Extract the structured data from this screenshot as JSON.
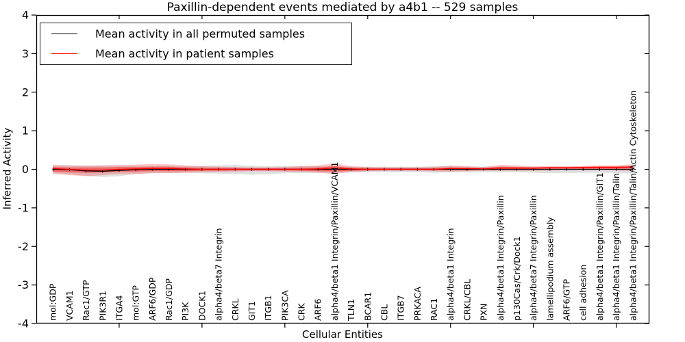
{
  "chart_data": {
    "type": "area",
    "title": "Paxillin-dependent events mediated by a4b1 -- 529 samples",
    "xlabel": "Cellular Entities",
    "ylabel": "Inferred Activity",
    "ylim": [
      -4,
      4
    ],
    "yticks": [
      -4,
      -3,
      -2,
      -1,
      0,
      1,
      2,
      3,
      4
    ],
    "x_axis_units": [
      0,
      37
    ],
    "x_major_ticks": [
      5,
      10,
      15,
      20,
      25,
      30,
      35
    ],
    "grid": false,
    "legend_position": "upper left",
    "categories": [
      "mol:GDP",
      "VCAM1",
      "Rac1/GTP",
      "PIK3R1",
      "ITGA4",
      "mol:GTP",
      "ARF6/GDP",
      "Rac1/GDP",
      "PI3K",
      "DOCK1",
      "alpha4/beta7 Integrin",
      "CRKL",
      "GIT1",
      "ITGB1",
      "PIK3CA",
      "CRK",
      "ARF6",
      "alpha4/beta1 Integrin/Paxillin/VCAM1",
      "TLN1",
      "BCAR1",
      "CBL",
      "ITGB7",
      "PRKACA",
      "RAC1",
      "alpha4/beta1 Integrin",
      "CRKL/CBL",
      "PXN",
      "alpha4/beta1 Integrin/Paxillin",
      "p130Cas/Crk/Dock1",
      "alpha4/beta7 Integrin/Paxillin",
      "lamellipodium assembly",
      "ARF6/GTP",
      "cell adhesion",
      "alpha4/beta1 Integrin/Paxillin/GIT1",
      "alpha4/beta1 Integrin/Paxillin/Talin",
      "alpha4/beta1 Integrin/Paxillin/Talin/Actin Cytoskeleton"
    ],
    "series": [
      {
        "name": "Mean activity in all permuted samples",
        "color": "#000000",
        "values": [
          0,
          -0.01,
          -0.04,
          -0.05,
          -0.03,
          -0.01,
          0,
          0,
          0,
          0,
          0,
          0,
          0,
          0,
          0,
          0,
          0,
          0,
          0,
          0,
          0,
          0,
          0,
          0,
          0,
          0,
          0,
          0,
          0,
          0,
          0,
          0,
          0,
          0,
          0,
          0
        ]
      },
      {
        "name": "Mean activity in patient samples",
        "color": "#ff0000",
        "values": [
          0.02,
          0,
          -0.02,
          -0.02,
          0,
          0.01,
          0.02,
          0.02,
          0.01,
          0,
          0,
          0,
          0,
          0,
          0,
          0,
          0.01,
          0.03,
          0.01,
          0,
          0,
          0,
          0,
          0,
          0.02,
          0.02,
          0.01,
          0.03,
          0.03,
          0.03,
          0.04,
          0.04,
          0.05,
          0.05,
          0.05,
          0.06
        ]
      }
    ],
    "bands": [
      {
        "name": "permuted-sample-range",
        "color": "#aaaaaa",
        "opacity": 0.38,
        "upper": [
          0.1,
          0.1,
          0.09,
          0.1,
          0.09,
          0.1,
          0.09,
          0.09,
          0.08,
          0.09,
          0.1,
          0.11,
          0.09,
          0.08,
          0.08,
          0.09,
          0.08,
          0.08,
          0.07,
          0.07,
          0.07,
          0.07,
          0.07,
          0.08,
          0.08,
          0.07,
          0.07,
          0.07,
          0.07,
          0.06,
          0.06,
          0.06,
          0.06,
          0.06,
          0.06,
          0.06
        ],
        "lower": [
          -0.1,
          -0.13,
          -0.17,
          -0.2,
          -0.18,
          -0.12,
          -0.1,
          -0.1,
          -0.09,
          -0.1,
          -0.11,
          -0.12,
          -0.14,
          -0.13,
          -0.1,
          -0.1,
          -0.09,
          -0.09,
          -0.08,
          -0.08,
          -0.08,
          -0.08,
          -0.08,
          -0.09,
          -0.08,
          -0.08,
          -0.08,
          -0.08,
          -0.08,
          -0.09,
          -0.1,
          -0.1,
          -0.09,
          -0.09,
          -0.1,
          -0.11
        ]
      },
      {
        "name": "patient-sample-range-outer",
        "color": "#ff0000",
        "opacity": 0.22,
        "upper": [
          0.12,
          0.1,
          0.1,
          0.1,
          0.11,
          0.12,
          0.14,
          0.13,
          0.1,
          0.08,
          0.07,
          0.06,
          0.05,
          0.05,
          0.06,
          0.08,
          0.1,
          0.16,
          0.08,
          0.06,
          0.05,
          0.05,
          0.05,
          0.06,
          0.1,
          0.08,
          0.06,
          0.12,
          0.1,
          0.08,
          0.08,
          0.08,
          0.09,
          0.1,
          0.1,
          0.13
        ],
        "lower": [
          -0.12,
          -0.15,
          -0.18,
          -0.15,
          -0.12,
          -0.12,
          -0.1,
          -0.1,
          -0.09,
          -0.08,
          -0.07,
          -0.06,
          -0.05,
          -0.05,
          -0.06,
          -0.07,
          -0.09,
          -0.12,
          -0.07,
          -0.05,
          -0.04,
          -0.04,
          -0.04,
          -0.05,
          -0.06,
          -0.05,
          -0.04,
          -0.04,
          -0.04,
          -0.04,
          -0.03,
          -0.02,
          -0.02,
          -0.02,
          -0.03,
          -0.05
        ]
      },
      {
        "name": "patient-sample-range-inner",
        "color": "#ff0000",
        "opacity": 0.4,
        "upper": [
          0.06,
          0.05,
          0.05,
          0.05,
          0.06,
          0.06,
          0.07,
          0.07,
          0.05,
          0.04,
          0.04,
          0.03,
          0.03,
          0.03,
          0.03,
          0.04,
          0.05,
          0.08,
          0.04,
          0.03,
          0.03,
          0.03,
          0.03,
          0.03,
          0.05,
          0.04,
          0.03,
          0.07,
          0.06,
          0.05,
          0.06,
          0.06,
          0.07,
          0.08,
          0.08,
          0.09
        ],
        "lower": [
          -0.06,
          -0.08,
          -0.09,
          -0.08,
          -0.06,
          -0.06,
          -0.05,
          -0.05,
          -0.05,
          -0.04,
          -0.04,
          -0.03,
          -0.03,
          -0.03,
          -0.03,
          -0.04,
          -0.05,
          -0.06,
          -0.04,
          -0.03,
          -0.02,
          -0.02,
          -0.02,
          -0.03,
          -0.02,
          -0.02,
          -0.01,
          0,
          -0.01,
          -0.01,
          -0.01,
          0,
          0.01,
          0.01,
          0.01,
          0.02
        ]
      }
    ]
  }
}
